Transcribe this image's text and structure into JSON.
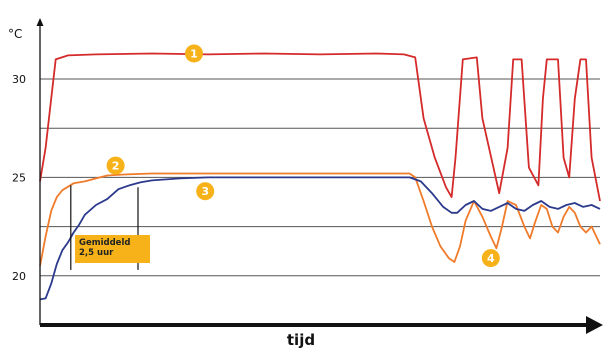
{
  "chart_data": {
    "type": "line",
    "ylabel": "°C",
    "xlabel": "tijd",
    "ylim": [
      17.5,
      33
    ],
    "yticks": [
      20,
      25,
      30
    ],
    "y_scale_note": "x axis has no numeric ticks; x values are relative positions 0-100 along 'tijd'",
    "xlim": [
      0,
      100
    ],
    "grid": true,
    "series": [
      {
        "color": "#d42a2a",
        "points": [
          [
            0,
            24.8
          ],
          [
            1,
            26.5
          ],
          [
            2,
            29
          ],
          [
            2.8,
            31
          ],
          [
            5,
            31.2
          ],
          [
            10,
            31.25
          ],
          [
            20,
            31.3
          ],
          [
            30,
            31.25
          ],
          [
            40,
            31.3
          ],
          [
            50,
            31.25
          ],
          [
            60,
            31.3
          ],
          [
            65,
            31.25
          ],
          [
            67,
            31.1
          ],
          [
            68.5,
            28
          ],
          [
            70.5,
            26
          ],
          [
            72.5,
            24.5
          ],
          [
            73.5,
            24
          ],
          [
            74.2,
            26
          ],
          [
            75.5,
            31
          ],
          [
            78,
            31.1
          ],
          [
            79,
            28
          ],
          [
            82,
            24.2
          ],
          [
            83.5,
            26.5
          ],
          [
            84.5,
            31
          ],
          [
            86,
            31
          ],
          [
            87.3,
            25.5
          ],
          [
            89,
            24.6
          ],
          [
            89.8,
            29
          ],
          [
            90.5,
            31
          ],
          [
            92.5,
            31
          ],
          [
            93.5,
            26
          ],
          [
            94.5,
            25
          ],
          [
            95.5,
            29
          ],
          [
            96.5,
            31
          ],
          [
            97.5,
            31
          ],
          [
            98.5,
            26
          ],
          [
            100,
            23.8
          ]
        ]
      },
      {
        "color": "#f07b2a",
        "points": [
          [
            0,
            20.5
          ],
          [
            1,
            22
          ],
          [
            2,
            23.3
          ],
          [
            3,
            24
          ],
          [
            4,
            24.35
          ],
          [
            6,
            24.7
          ],
          [
            8,
            24.8
          ],
          [
            10,
            24.95
          ],
          [
            12,
            25.1
          ],
          [
            15,
            25.15
          ],
          [
            20,
            25.2
          ],
          [
            30,
            25.2
          ],
          [
            40,
            25.2
          ],
          [
            50,
            25.2
          ],
          [
            60,
            25.2
          ],
          [
            66,
            25.2
          ],
          [
            67,
            25
          ],
          [
            68.5,
            23.8
          ],
          [
            70,
            22.5
          ],
          [
            71.5,
            21.5
          ],
          [
            73,
            20.9
          ],
          [
            74,
            20.7
          ],
          [
            75,
            21.5
          ],
          [
            76,
            22.8
          ],
          [
            77.5,
            23.8
          ],
          [
            79,
            23
          ],
          [
            80.5,
            22
          ],
          [
            81.5,
            21.4
          ],
          [
            82.5,
            22.5
          ],
          [
            83.5,
            23.8
          ],
          [
            85,
            23.6
          ],
          [
            86.5,
            22.5
          ],
          [
            87.5,
            21.9
          ],
          [
            88.5,
            22.8
          ],
          [
            89.5,
            23.6
          ],
          [
            90.5,
            23.4
          ],
          [
            91.5,
            22.5
          ],
          [
            92.5,
            22.2
          ],
          [
            93.5,
            23
          ],
          [
            94.5,
            23.5
          ],
          [
            95.5,
            23.2
          ],
          [
            96.5,
            22.5
          ],
          [
            97.5,
            22.2
          ],
          [
            98.5,
            22.5
          ],
          [
            100,
            21.6
          ]
        ]
      },
      {
        "color": "#2b3a8c",
        "points": [
          [
            0,
            18.8
          ],
          [
            1,
            18.85
          ],
          [
            2,
            19.6
          ],
          [
            3,
            20.6
          ],
          [
            4,
            21.3
          ],
          [
            5,
            21.7
          ],
          [
            6,
            22.2
          ],
          [
            7,
            22.6
          ],
          [
            8,
            23.1
          ],
          [
            10,
            23.6
          ],
          [
            12,
            23.9
          ],
          [
            14,
            24.4
          ],
          [
            16,
            24.6
          ],
          [
            18,
            24.75
          ],
          [
            20,
            24.85
          ],
          [
            25,
            24.95
          ],
          [
            30,
            25
          ],
          [
            40,
            25
          ],
          [
            50,
            25
          ],
          [
            60,
            25
          ],
          [
            66,
            25
          ],
          [
            68,
            24.8
          ],
          [
            70,
            24.2
          ],
          [
            72,
            23.5
          ],
          [
            73.5,
            23.2
          ],
          [
            74.5,
            23.2
          ],
          [
            76,
            23.6
          ],
          [
            77.5,
            23.8
          ],
          [
            79,
            23.4
          ],
          [
            80.5,
            23.3
          ],
          [
            82,
            23.5
          ],
          [
            83.5,
            23.7
          ],
          [
            85,
            23.4
          ],
          [
            86.5,
            23.3
          ],
          [
            88,
            23.6
          ],
          [
            89.5,
            23.8
          ],
          [
            91,
            23.5
          ],
          [
            92.5,
            23.4
          ],
          [
            94,
            23.6
          ],
          [
            95.5,
            23.7
          ],
          [
            97,
            23.5
          ],
          [
            98.5,
            23.6
          ],
          [
            100,
            23.4
          ]
        ]
      }
    ],
    "markers": [
      {
        "label": "1",
        "x": 27.5,
        "y": 31.3
      },
      {
        "label": "2",
        "x": 13.5,
        "y": 25.6
      },
      {
        "label": "3",
        "x": 29.5,
        "y": 24.3
      },
      {
        "label": "4",
        "x": 80.5,
        "y": 20.9
      }
    ],
    "vertical_lines": [
      {
        "x": 5.5,
        "from": 20.3,
        "to": 24.6
      },
      {
        "x": 17.5,
        "from": 20.3,
        "to": 24.5
      }
    ],
    "annotation": {
      "line1": "Gemiddeld",
      "line2": "2,5 uur"
    },
    "colors": {
      "axis": "#111111",
      "grid": "#555555",
      "badge": "#f7b21a"
    }
  }
}
